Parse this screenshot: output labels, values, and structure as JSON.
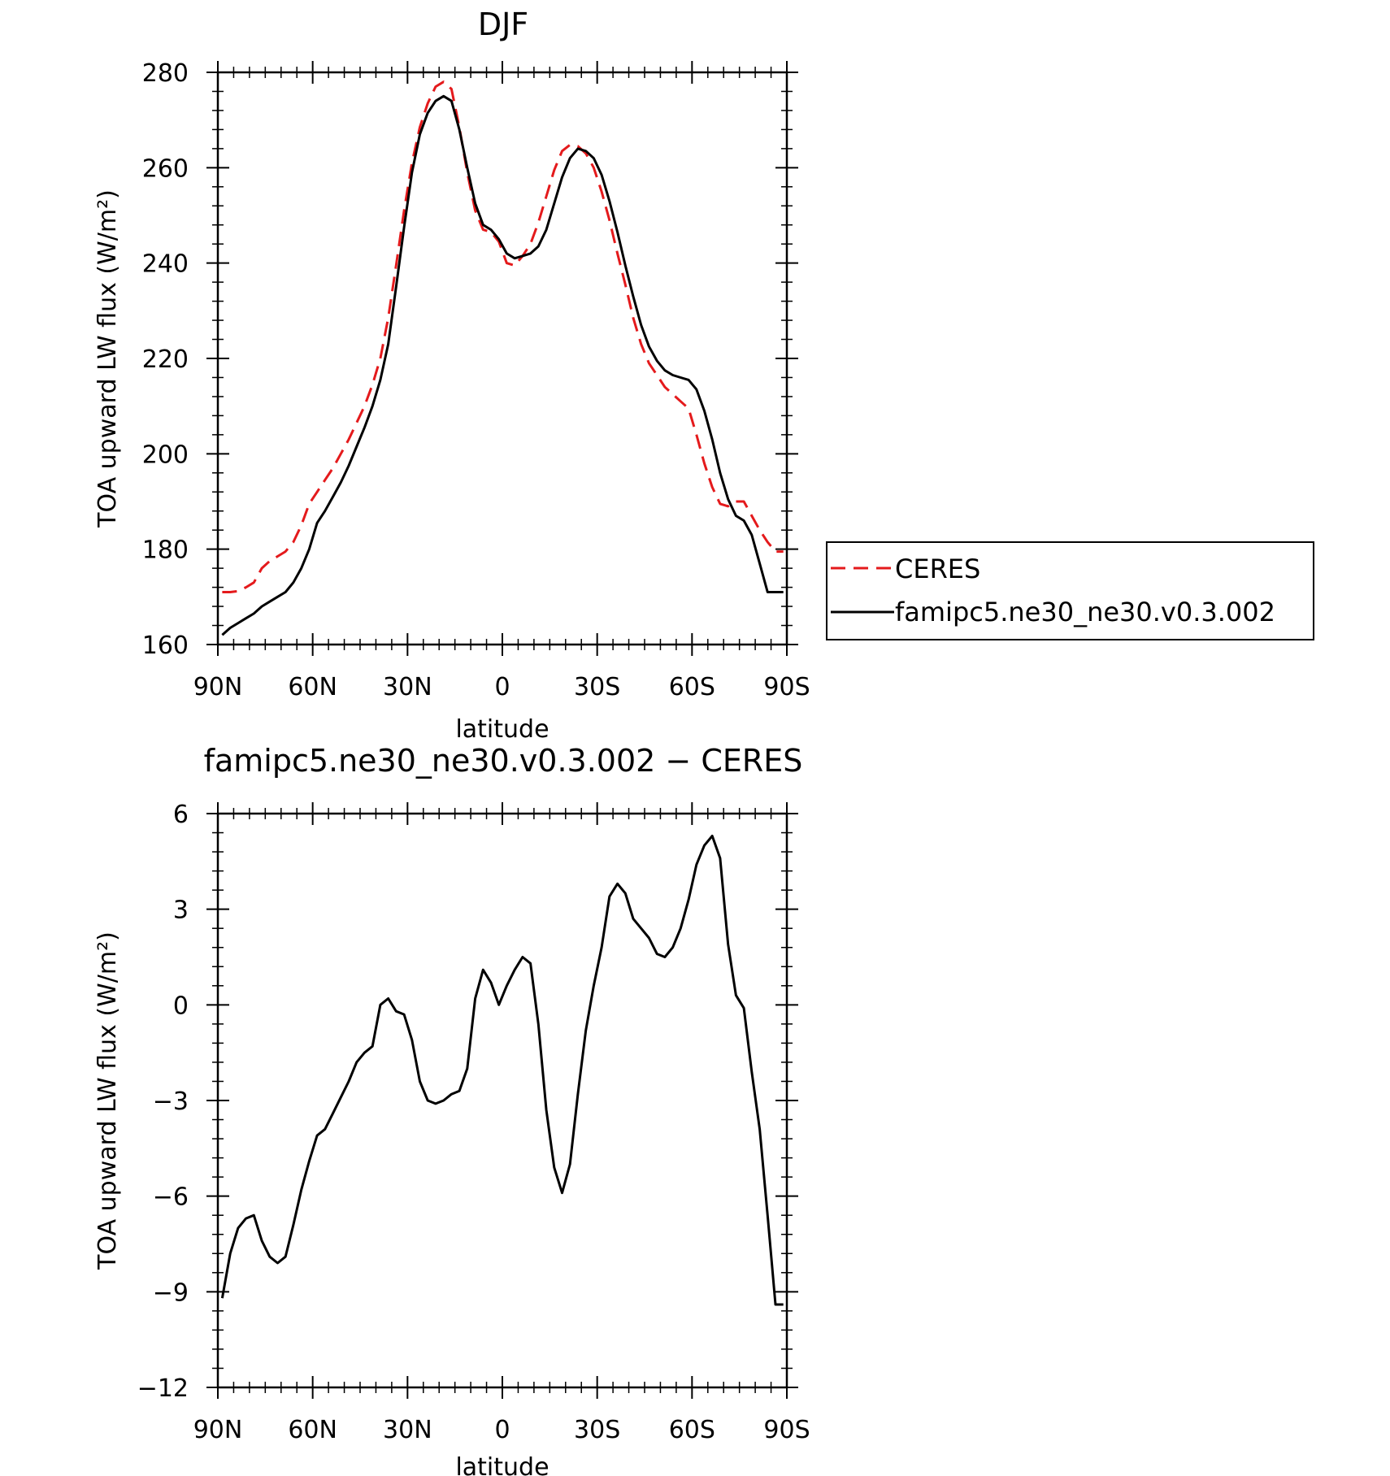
{
  "chart_data": [
    {
      "type": "line",
      "title": "DJF",
      "xlabel": "latitude",
      "ylabel": "TOA upward LW flux (W/m²)",
      "xlim": [
        90,
        -90
      ],
      "ylim": [
        160,
        280
      ],
      "yticks": [
        160,
        180,
        200,
        220,
        240,
        260,
        280
      ],
      "xtick_values": [
        90,
        60,
        30,
        0,
        -30,
        -60,
        -90
      ],
      "xtick_labels": [
        "90N",
        "60N",
        "30N",
        "0",
        "30S",
        "60S",
        "90S"
      ],
      "legend": "right",
      "series": [
        {
          "name": "CERES",
          "color": "#e41a1c",
          "style": "dashed",
          "x": [
            88.6,
            86.1,
            83.6,
            81.1,
            78.6,
            76.1,
            73.6,
            71.1,
            68.6,
            66.1,
            63.6,
            61.1,
            58.6,
            56.1,
            53.6,
            51.1,
            48.6,
            46.1,
            43.6,
            41.1,
            38.6,
            36.1,
            33.6,
            31.1,
            28.6,
            26.1,
            23.6,
            21.1,
            18.6,
            16.1,
            13.6,
            11.1,
            8.6,
            6.1,
            3.6,
            1.1,
            -1.4,
            -3.9,
            -6.4,
            -8.9,
            -11.4,
            -13.9,
            -16.4,
            -18.9,
            -21.4,
            -23.9,
            -26.4,
            -28.9,
            -31.4,
            -33.9,
            -36.4,
            -38.9,
            -41.4,
            -43.9,
            -46.4,
            -48.9,
            -51.4,
            -53.9,
            -56.4,
            -58.9,
            -61.4,
            -63.9,
            -66.4,
            -68.9,
            -71.4,
            -73.9,
            -76.4,
            -78.9,
            -81.4,
            -83.9,
            -86.4,
            -88.9
          ],
          "y": [
            171.0,
            171.0,
            171.2,
            172.0,
            173.0,
            176.0,
            177.5,
            178.5,
            179.5,
            181.5,
            185.0,
            189.5,
            192.0,
            194.5,
            197.0,
            200.0,
            203.0,
            206.5,
            210.0,
            214.5,
            220.0,
            228.5,
            239.5,
            251.0,
            261.0,
            268.5,
            273.5,
            277.0,
            278.0,
            276.5,
            268.5,
            259.0,
            251.0,
            247.0,
            246.5,
            244.5,
            240.0,
            239.5,
            241.5,
            244.0,
            248.5,
            254.0,
            259.5,
            263.5,
            264.8,
            264.5,
            263.0,
            260.0,
            255.0,
            249.0,
            242.0,
            235.5,
            228.5,
            223.0,
            219.0,
            216.5,
            214.0,
            212.5,
            211.0,
            209.5,
            204.0,
            198.0,
            193.0,
            189.5,
            189.0,
            190.0,
            190.0,
            187.0,
            184.0,
            181.5,
            179.5,
            179.5
          ]
        },
        {
          "name": "famipc5.ne30_ne30.v0.3.002",
          "color": "#000000",
          "style": "solid",
          "x": [
            88.6,
            86.1,
            83.6,
            81.1,
            78.6,
            76.1,
            73.6,
            71.1,
            68.6,
            66.1,
            63.6,
            61.1,
            58.6,
            56.1,
            53.6,
            51.1,
            48.6,
            46.1,
            43.6,
            41.1,
            38.6,
            36.1,
            33.6,
            31.1,
            28.6,
            26.1,
            23.6,
            21.1,
            18.6,
            16.1,
            13.6,
            11.1,
            8.6,
            6.1,
            3.6,
            1.1,
            -1.4,
            -3.9,
            -6.4,
            -8.9,
            -11.4,
            -13.9,
            -16.4,
            -18.9,
            -21.4,
            -23.9,
            -26.4,
            -28.9,
            -31.4,
            -33.9,
            -36.4,
            -38.9,
            -41.4,
            -43.9,
            -46.4,
            -48.9,
            -51.4,
            -53.9,
            -56.4,
            -58.9,
            -61.4,
            -63.9,
            -66.4,
            -68.9,
            -71.4,
            -73.9,
            -76.4,
            -78.9,
            -81.4,
            -83.9,
            -86.4,
            -88.9
          ],
          "y": [
            162.0,
            163.5,
            164.5,
            165.5,
            166.5,
            168.0,
            169.0,
            170.0,
            171.0,
            173.0,
            176.0,
            180.0,
            185.5,
            188.0,
            191.0,
            194.0,
            197.5,
            201.5,
            205.5,
            210.0,
            215.5,
            223.0,
            235.0,
            247.5,
            259.0,
            267.0,
            271.5,
            274.0,
            275.0,
            274.0,
            268.0,
            260.0,
            252.5,
            248.0,
            247.0,
            245.0,
            242.0,
            241.0,
            241.5,
            242.0,
            243.5,
            247.0,
            252.5,
            258.0,
            262.0,
            264.0,
            263.5,
            262.0,
            258.5,
            253.0,
            246.5,
            239.5,
            233.0,
            227.0,
            222.5,
            219.5,
            217.5,
            216.5,
            216.0,
            215.5,
            213.5,
            209.0,
            203.0,
            196.0,
            190.5,
            187.0,
            186.0,
            183.0,
            177.0,
            171.0,
            171.0,
            171.0
          ]
        }
      ]
    },
    {
      "type": "line",
      "title": "famipc5.ne30_ne30.v0.3.002 − CERES",
      "xlabel": "latitude",
      "ylabel": "TOA upward LW flux (W/m²)",
      "xlim": [
        90,
        -90
      ],
      "ylim": [
        -12,
        6
      ],
      "yticks": [
        -12,
        -9,
        -6,
        -3,
        0,
        3,
        6
      ],
      "ytick_labels": [
        "−12",
        "−9",
        "−6",
        "−3",
        "0",
        "3",
        "6"
      ],
      "xtick_values": [
        90,
        60,
        30,
        0,
        -30,
        -60,
        -90
      ],
      "xtick_labels": [
        "90N",
        "60N",
        "30N",
        "0",
        "30S",
        "60S",
        "90S"
      ],
      "series": [
        {
          "color": "#000000",
          "style": "solid",
          "x": [
            88.6,
            86.1,
            83.6,
            81.1,
            78.6,
            76.1,
            73.6,
            71.1,
            68.6,
            66.1,
            63.6,
            61.1,
            58.6,
            56.1,
            53.6,
            51.1,
            48.6,
            46.1,
            43.6,
            41.1,
            38.6,
            36.1,
            33.6,
            31.1,
            28.6,
            26.1,
            23.6,
            21.1,
            18.6,
            16.1,
            13.6,
            11.1,
            8.6,
            6.1,
            3.6,
            1.1,
            -1.4,
            -3.9,
            -6.4,
            -8.9,
            -11.4,
            -13.9,
            -16.4,
            -18.9,
            -21.4,
            -23.9,
            -26.4,
            -28.9,
            -31.4,
            -33.9,
            -36.4,
            -38.9,
            -41.4,
            -43.9,
            -46.4,
            -48.9,
            -51.4,
            -53.9,
            -56.4,
            -58.9,
            -61.4,
            -63.9,
            -66.4,
            -68.9,
            -71.4,
            -73.9,
            -76.4,
            -78.9,
            -81.4,
            -83.9,
            -86.4,
            -88.9
          ],
          "y": [
            -9.2,
            -7.8,
            -7.0,
            -6.7,
            -6.6,
            -7.4,
            -7.9,
            -8.1,
            -7.9,
            -6.9,
            -5.8,
            -4.9,
            -4.1,
            -3.9,
            -3.4,
            -2.9,
            -2.4,
            -1.8,
            -1.5,
            -1.3,
            0.0,
            0.2,
            -0.2,
            -0.3,
            -1.1,
            -2.4,
            -3.0,
            -3.1,
            -3.0,
            -2.8,
            -2.7,
            -2.0,
            0.2,
            1.1,
            0.7,
            0.0,
            0.6,
            1.1,
            1.5,
            1.3,
            -0.6,
            -3.3,
            -5.1,
            -5.9,
            -5.0,
            -2.8,
            -0.8,
            0.6,
            1.8,
            3.4,
            3.8,
            3.5,
            2.7,
            2.4,
            2.1,
            1.6,
            1.5,
            1.8,
            2.4,
            3.3,
            4.4,
            5.0,
            5.3,
            4.6,
            1.9,
            0.3,
            -0.1,
            -2.1,
            -3.9,
            -6.6,
            -9.4,
            -9.4
          ]
        }
      ]
    }
  ]
}
